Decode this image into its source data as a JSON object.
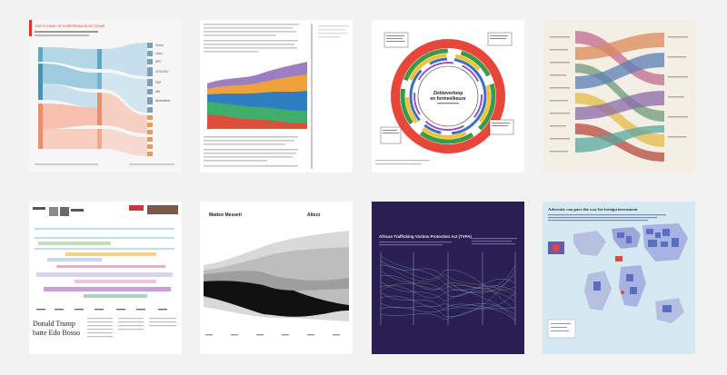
{
  "colors": {
    "page_background": "#f2f2f2",
    "sankey_accent": "#e8332a",
    "migration_dark": "#2a1f52",
    "ivory": "#f3efe4",
    "map_blue": "#d5e9f2"
  },
  "tiles": [
    {
      "name": "sankey-flow-chart",
      "header": "THE FLOWS OF EUROPEAN ELECTIONS",
      "subheader": "",
      "labels": [
        "Grüne",
        "Linke",
        "SPD",
        "CDU/CSU",
        "FDP",
        "AfD",
        "Nichtwähler"
      ],
      "footer": ""
    },
    {
      "name": "stacked-area-article",
      "header": "",
      "subheader": "",
      "labels": [],
      "footer": ""
    },
    {
      "name": "radial-calendar",
      "header": "Ziekteverloop",
      "subheader": "en formeelkeuze",
      "labels": [],
      "footer": ""
    },
    {
      "name": "alluvial-chart",
      "header": "",
      "subheader": "",
      "labels": [],
      "footer": ""
    },
    {
      "name": "newspaper-timeline",
      "header": "Donald Trump",
      "subheader": "batte Edo Bosso",
      "labels": [],
      "footer": ""
    },
    {
      "name": "streamgraph",
      "header": "Matteo Messeti",
      "subheader": "Altezz",
      "labels": [],
      "footer": ""
    },
    {
      "name": "parallel-lines",
      "header": "African Trafficking Victims Protection Act (TVPA)",
      "subheader": "",
      "labels": [],
      "footer": ""
    },
    {
      "name": "investment-map",
      "header": "Adversity can pave the way for foreign investment",
      "subheader": "",
      "labels": [],
      "footer": ""
    }
  ]
}
